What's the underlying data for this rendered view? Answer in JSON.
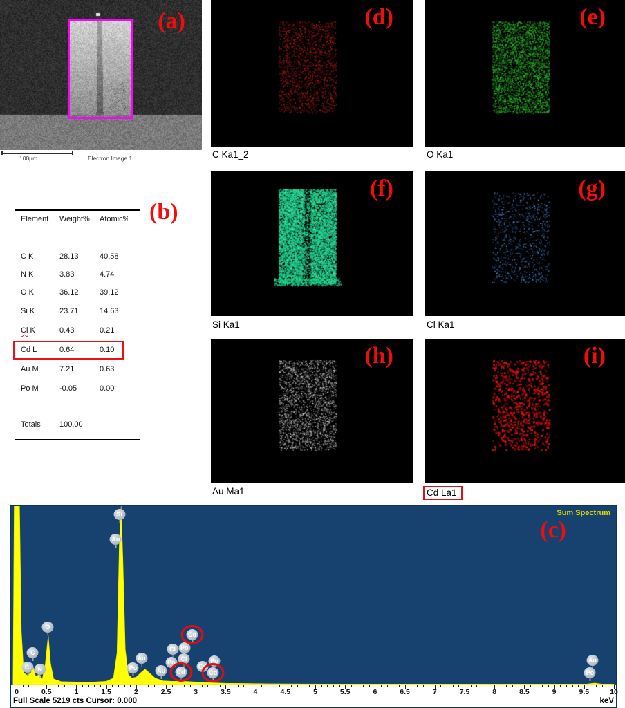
{
  "panels": {
    "a": {
      "letter": "(a)",
      "scale_bar_label": "100µm",
      "caption": "Electron Image 1"
    },
    "b": {
      "letter": "(b)"
    },
    "c": {
      "letter": "(c)"
    }
  },
  "element_table": {
    "headers": [
      "Element",
      "Weight%",
      "Atomic%"
    ],
    "rows": [
      {
        "element": "C K",
        "weight": "28.13",
        "atomic": "40.58"
      },
      {
        "element": "N K",
        "weight": "3.83",
        "atomic": "4.74"
      },
      {
        "element": "O K",
        "weight": "36.12",
        "atomic": "39.12"
      },
      {
        "element": "Si K",
        "weight": "23.71",
        "atomic": "14.63"
      },
      {
        "element": "Cl K",
        "weight": "0.43",
        "atomic": "0.21",
        "spellcheck_underline": true
      },
      {
        "element": "Cd L",
        "weight": "0.64",
        "atomic": "0.10",
        "highlighted": true
      },
      {
        "element": "Au M",
        "weight": "7.21",
        "atomic": "0.63"
      },
      {
        "element": "Po M",
        "weight": "-0.05",
        "atomic": "0.00"
      }
    ],
    "totals": {
      "label": "Totals",
      "weight": "100.00"
    }
  },
  "maps": [
    {
      "id": "d",
      "letter": "(d)",
      "label": "C Ka1_2",
      "dot_color": "#b51414"
    },
    {
      "id": "e",
      "letter": "(e)",
      "label": "O Ka1",
      "dot_color": "#2fae2f"
    },
    {
      "id": "f",
      "letter": "(f)",
      "label": "Si Ka1",
      "dot_color": "#17cf8d"
    },
    {
      "id": "g",
      "letter": "(g)",
      "label": "Cl Ka1",
      "dot_color": "#4d8fd6"
    },
    {
      "id": "h",
      "letter": "(h)",
      "label": "Au Ma1",
      "dot_color": "#d9d9d9"
    },
    {
      "id": "i",
      "letter": "(i)",
      "label": "Cd La1",
      "dot_color": "#ee1414",
      "label_boxed": true
    }
  ],
  "spectrum": {
    "title": "Sum Spectrum",
    "status_left": "Full Scale 5219 cts Cursor: 0.000",
    "xlabel": "keV",
    "bg_color": "#17416f",
    "trace_color": "#ffff00",
    "annotation_ring_color": "#dc1010",
    "roi_color": "#ff00ff"
  },
  "chart_data": {
    "type": "area",
    "title": "Sum Spectrum",
    "xlabel": "keV",
    "x_range": [
      0,
      10
    ],
    "full_scale_cts": 5219,
    "grid": false,
    "x_ticks": [
      "0",
      "0.5",
      "1",
      "1.5",
      "2",
      "2.5",
      "3",
      "3.5",
      "4",
      "4.5",
      "5",
      "5.5",
      "6",
      "6.5",
      "7",
      "7.5",
      "8",
      "8.5",
      "9",
      "9.5",
      "10"
    ],
    "series": [
      {
        "name": "sum-spectrum-counts-fraction-of-full-scale",
        "points_keV_fraction": [
          [
            -0.06,
            0
          ],
          [
            -0.04,
            1.0
          ],
          [
            0.05,
            1.0
          ],
          [
            0.08,
            0.3
          ],
          [
            0.12,
            0.07
          ],
          [
            0.18,
            0.055
          ],
          [
            0.24,
            0.07
          ],
          [
            0.28,
            0.1
          ],
          [
            0.32,
            0.05
          ],
          [
            0.38,
            0.06
          ],
          [
            0.43,
            0.035
          ],
          [
            0.48,
            0.12
          ],
          [
            0.53,
            0.28
          ],
          [
            0.57,
            0.12
          ],
          [
            0.62,
            0.035
          ],
          [
            0.75,
            0.02
          ],
          [
            1.0,
            0.018
          ],
          [
            1.3,
            0.018
          ],
          [
            1.5,
            0.022
          ],
          [
            1.62,
            0.04
          ],
          [
            1.68,
            0.18
          ],
          [
            1.72,
            0.8
          ],
          [
            1.75,
            1.0
          ],
          [
            1.78,
            0.7
          ],
          [
            1.82,
            0.2
          ],
          [
            1.87,
            0.06
          ],
          [
            1.93,
            0.04
          ],
          [
            2.0,
            0.045
          ],
          [
            2.08,
            0.07
          ],
          [
            2.15,
            0.09
          ],
          [
            2.22,
            0.07
          ],
          [
            2.32,
            0.04
          ],
          [
            2.45,
            0.025
          ],
          [
            2.6,
            0.022
          ],
          [
            2.8,
            0.022
          ],
          [
            3.0,
            0.018
          ],
          [
            3.25,
            0.014
          ],
          [
            3.5,
            0.011
          ],
          [
            3.8,
            0.01
          ],
          [
            4.2,
            0.008
          ],
          [
            4.8,
            0.007
          ],
          [
            5.5,
            0.006
          ],
          [
            6.5,
            0.006
          ],
          [
            7.5,
            0.005
          ],
          [
            8.5,
            0.005
          ],
          [
            9.3,
            0.005
          ],
          [
            9.55,
            0.007
          ],
          [
            9.68,
            0.012
          ],
          [
            9.8,
            0.006
          ],
          [
            10,
            0.004
          ]
        ]
      }
    ],
    "peak_labels": [
      {
        "element": "Cl",
        "keV": 0.19,
        "top_frac": 0.9
      },
      {
        "element": "C",
        "keV": 0.27,
        "top_frac": 0.82
      },
      {
        "element": "N",
        "keV": 0.39,
        "top_frac": 0.91
      },
      {
        "element": "O",
        "keV": 0.52,
        "top_frac": 0.675
      },
      {
        "element": "Au",
        "keV": 1.66,
        "top_frac": 0.185
      },
      {
        "element": "Si",
        "keV": 1.72,
        "top_frac": 0.045
      },
      {
        "element": "Po",
        "keV": 1.95,
        "top_frac": 0.905
      },
      {
        "element": "Au",
        "keV": 2.09,
        "top_frac": 0.85
      },
      {
        "element": "Au",
        "keV": 2.42,
        "top_frac": 0.92
      },
      {
        "element": "Po",
        "keV": 2.59,
        "top_frac": 0.873
      },
      {
        "element": "Cl",
        "keV": 2.61,
        "top_frac": 0.8
      },
      {
        "element": "Po",
        "keV": 2.81,
        "top_frac": 0.79
      },
      {
        "element": "Cl",
        "keV": 2.8,
        "top_frac": 0.854
      },
      {
        "element": "Cd",
        "keV": 2.75,
        "top_frac": 0.927,
        "circled": true
      },
      {
        "element": "Cd",
        "keV": 2.94,
        "top_frac": 0.72,
        "circled": true
      },
      {
        "element": "Cd",
        "keV": 3.11,
        "top_frac": 0.896
      },
      {
        "element": "Po",
        "keV": 3.31,
        "top_frac": 0.865
      },
      {
        "element": "Cd",
        "keV": 3.29,
        "top_frac": 0.931,
        "circled": true
      },
      {
        "element": "Au",
        "keV": 9.64,
        "top_frac": 0.86
      },
      {
        "element": "Po",
        "keV": 9.6,
        "top_frac": 0.93
      }
    ]
  }
}
